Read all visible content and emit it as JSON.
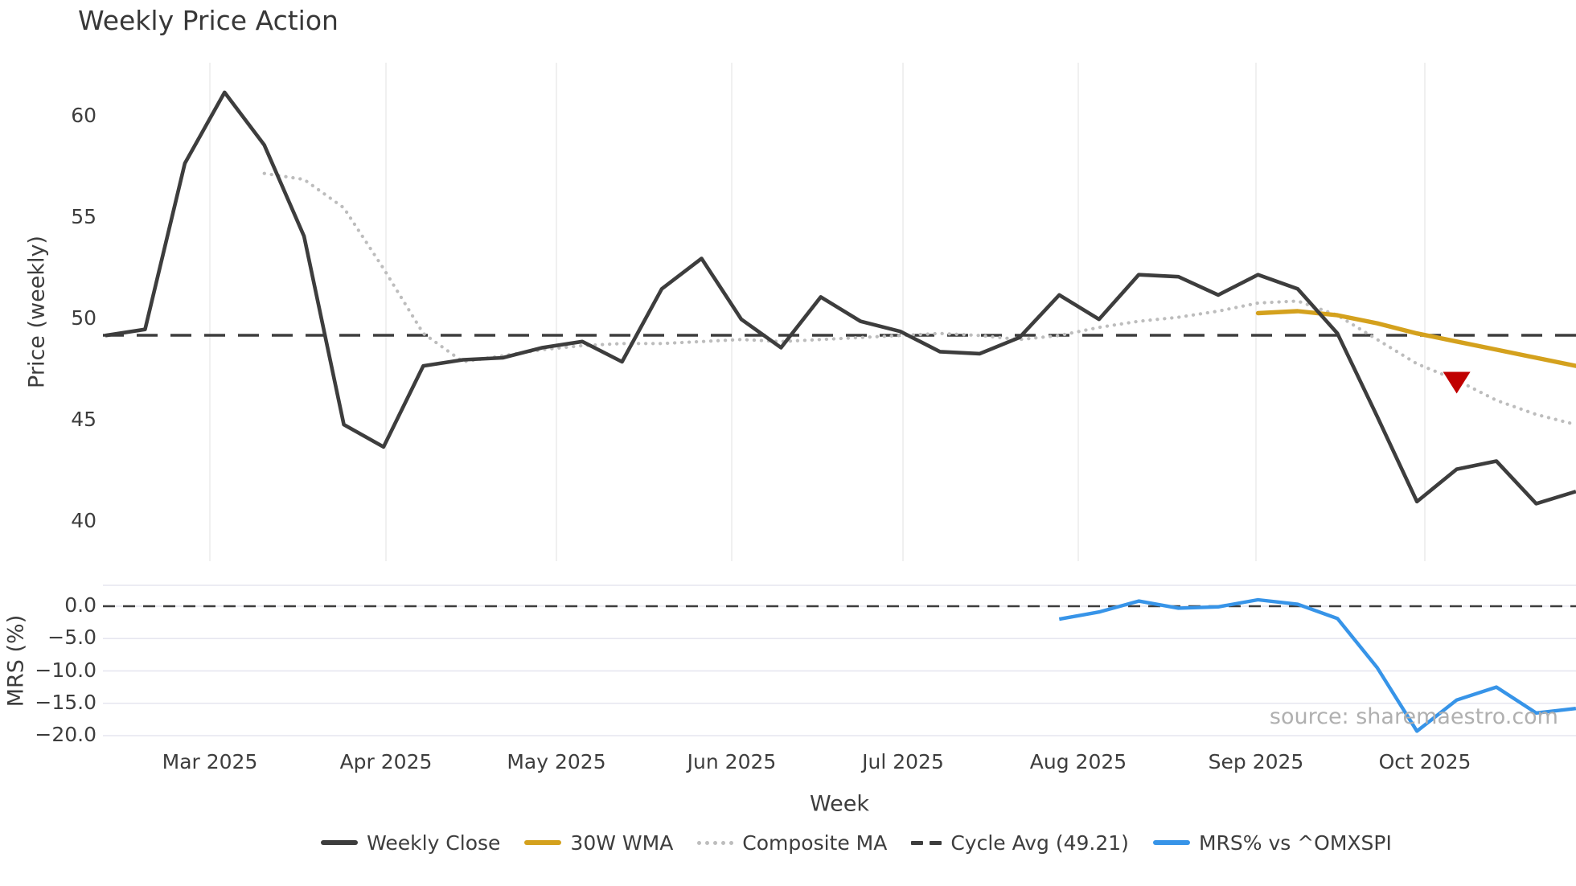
{
  "title": "Weekly Price Action",
  "source_note": "source: sharemaestro.com",
  "axes": {
    "price_label": "Price (weekly)",
    "mrs_label": "MRS (%)",
    "x_label": "Week",
    "price_tick_labels": [
      "60",
      "55",
      "50",
      "45",
      "40"
    ],
    "mrs_tick_labels": [
      "0.0",
      "−5.0",
      "−10.0",
      "−15.0",
      "−20.0"
    ],
    "month_labels": [
      "Mar 2025",
      "Apr 2025",
      "May 2025",
      "Jun 2025",
      "Jul 2025",
      "Aug 2025",
      "Sep 2025",
      "Oct 2025"
    ]
  },
  "legend": [
    {
      "label": "Weekly Close",
      "swatch": "solid",
      "color": "#3d3d3d"
    },
    {
      "label": "30W WMA",
      "swatch": "solid",
      "color": "#d4a11d"
    },
    {
      "label": "Composite MA",
      "swatch": "dotted",
      "color": "#bdbdbd"
    },
    {
      "label": "Cycle Avg (49.21)",
      "swatch": "dashed",
      "color": "#3d3d3d"
    },
    {
      "label": "MRS% vs ^OMXSPI",
      "swatch": "solid",
      "color": "#3794e8"
    }
  ],
  "colors": {
    "dark": "#3d3d3d",
    "gold": "#d4a11d",
    "dotted": "#bdbdbd",
    "blue": "#3794e8",
    "red": "#c00000",
    "grid_top": "#ededed",
    "grid_bottom": "#e6e6ef",
    "source": "#b0b0b0"
  },
  "chart_data": [
    {
      "type": "line",
      "panel": "price",
      "title": "Weekly Price Action",
      "ylabel": "Price (weekly)",
      "xlabel": "Week",
      "ylim": [
        38.2,
        62.6
      ],
      "yticks": [
        60,
        55,
        50,
        45,
        40
      ],
      "x_tick_labels": [
        "Mar 2025",
        "Apr 2025",
        "May 2025",
        "Jun 2025",
        "Jul 2025",
        "Aug 2025",
        "Sep 2025",
        "Oct 2025"
      ],
      "x_weeks": [
        "Feb 10",
        "Feb 17",
        "Feb 24",
        "Mar 3",
        "Mar 10",
        "Mar 17",
        "Mar 24",
        "Mar 31",
        "Apr 7",
        "Apr 14",
        "Apr 21",
        "Apr 28",
        "May 5",
        "May 12",
        "May 19",
        "May 26",
        "Jun 2",
        "Jun 9",
        "Jun 16",
        "Jun 23",
        "Jun 30",
        "Jul 7",
        "Jul 14",
        "Jul 21",
        "Jul 28",
        "Aug 4",
        "Aug 11",
        "Aug 18",
        "Aug 25",
        "Sep 1",
        "Sep 8",
        "Sep 15",
        "Sep 22",
        "Sep 29",
        "Oct 6",
        "Oct 13",
        "Oct 20",
        "Oct 27"
      ],
      "grid": "vertical-months-only",
      "legend_position": "bottom",
      "series": [
        {
          "name": "Weekly Close",
          "style": "solid",
          "start_week": 0,
          "values": [
            49.2,
            49.5,
            57.7,
            61.2,
            58.6,
            54.1,
            44.8,
            43.7,
            47.7,
            48.0,
            48.1,
            48.6,
            48.9,
            47.9,
            51.5,
            53.0,
            50.0,
            48.6,
            51.1,
            49.9,
            49.4,
            48.4,
            48.3,
            49.1,
            51.2,
            50.0,
            52.2,
            52.1,
            51.2,
            52.2,
            51.5,
            49.3,
            45.2,
            41.0,
            42.6,
            43.0,
            40.9,
            41.5
          ]
        },
        {
          "name": "Composite MA",
          "style": "dotted",
          "start_week": 4,
          "values": [
            57.2,
            56.9,
            55.5,
            52.5,
            49.3,
            47.9,
            48.2,
            48.5,
            48.7,
            48.8,
            48.8,
            48.9,
            49.0,
            48.9,
            49.0,
            49.1,
            49.2,
            49.3,
            49.2,
            49.0,
            49.2,
            49.6,
            49.9,
            50.1,
            50.4,
            50.8,
            50.9,
            50.2,
            49.0,
            47.8,
            47.0,
            46.0,
            45.3,
            44.8
          ]
        },
        {
          "name": "30W WMA",
          "style": "solid",
          "start_week": 29,
          "values": [
            50.3,
            50.4,
            50.2,
            49.8,
            49.3,
            48.9,
            48.5,
            48.1,
            47.7
          ]
        },
        {
          "name": "Cycle Avg",
          "style": "hline-dashed",
          "value": 49.21
        }
      ],
      "annotations": [
        {
          "type": "triangle-down",
          "week": 34,
          "value": 46.85,
          "color": "#c00000",
          "meaning": "sell-signal-marker"
        }
      ]
    },
    {
      "type": "line",
      "panel": "mrs",
      "ylabel": "MRS (%)",
      "ylim": [
        -20.8,
        3.3
      ],
      "yticks": [
        0.0,
        -5.0,
        -10.0,
        -15.0,
        -20.0
      ],
      "grid": "horizontal",
      "series": [
        {
          "name": "MRS% vs ^OMXSPI",
          "style": "solid",
          "start_week": 24,
          "values": [
            -2.0,
            -0.9,
            0.8,
            -0.3,
            -0.1,
            1.0,
            0.3,
            -1.9,
            -9.5,
            -19.3,
            -14.5,
            -12.5,
            -16.5,
            -15.8
          ]
        },
        {
          "name": "zero",
          "style": "hline-dashed",
          "value": 0.0
        }
      ]
    }
  ]
}
